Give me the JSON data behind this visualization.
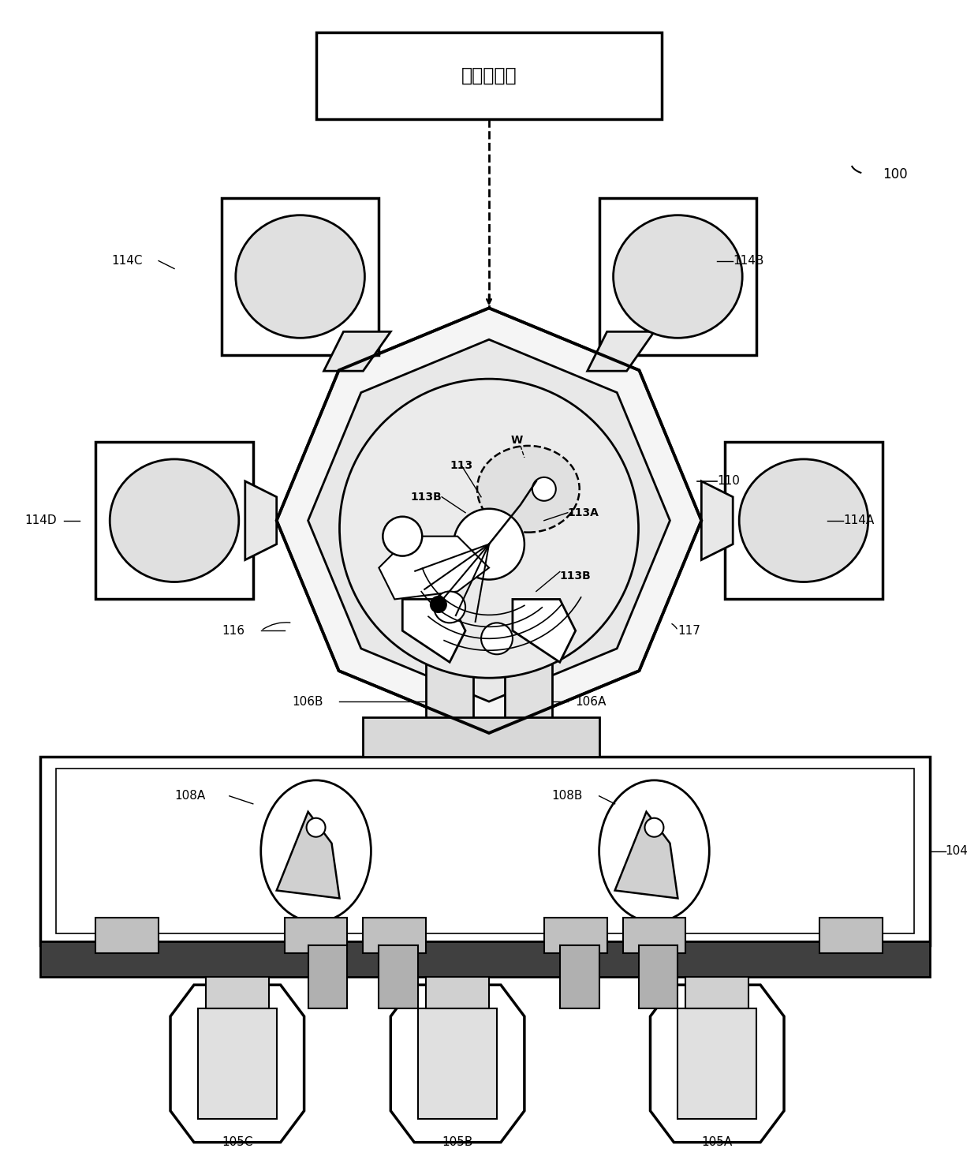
{
  "title_text": "系统控制器",
  "label_100": "100",
  "label_104": "104",
  "label_105A": "105A",
  "label_105B": "105B",
  "label_105C": "105C",
  "label_106A": "106A",
  "label_106B": "106B",
  "label_108A": "108A",
  "label_108B": "108B",
  "label_110": "110",
  "label_113": "113",
  "label_113A": "113A",
  "label_113B_1": "113B",
  "label_113B_2": "113B",
  "label_114A": "114A",
  "label_114B": "114B",
  "label_114C": "114C",
  "label_114D": "114D",
  "label_116": "116",
  "label_117": "117",
  "label_W": "W",
  "bg_color": "#ffffff",
  "line_color": "#000000",
  "fig_width": 12.4,
  "fig_height": 14.79
}
